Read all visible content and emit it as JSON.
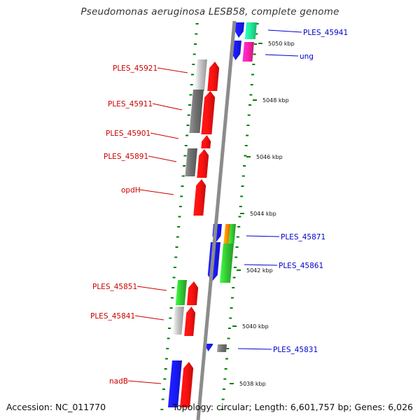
{
  "title": "Pseudomonas aeruginosa LESB58, complete genome",
  "footer": {
    "accession": "Accession: NC_011770",
    "info": "Topology: circular; Length: 6,601,757 bp; Genes: 6,026"
  },
  "colors": {
    "backbone": "#8c8c8c",
    "tick": "#008000",
    "left_label": "#cc0000",
    "right_label": "#0000cc"
  },
  "kbp_labels": [
    "5050 kbp",
    "5048 kbp",
    "5046 kbp",
    "5044 kbp",
    "5042 kbp",
    "5040 kbp",
    "5038 kbp"
  ],
  "gene_labels_left": [
    "PLES_45921",
    "PLES_45911",
    "PLES_45901",
    "PLES_45891",
    "opdH",
    "PLES_45851",
    "PLES_45841",
    "nadB"
  ],
  "gene_labels_right": [
    "PLES_45941",
    "ung",
    "PLES_45871",
    "PLES_45861",
    "PLES_45831"
  ]
}
